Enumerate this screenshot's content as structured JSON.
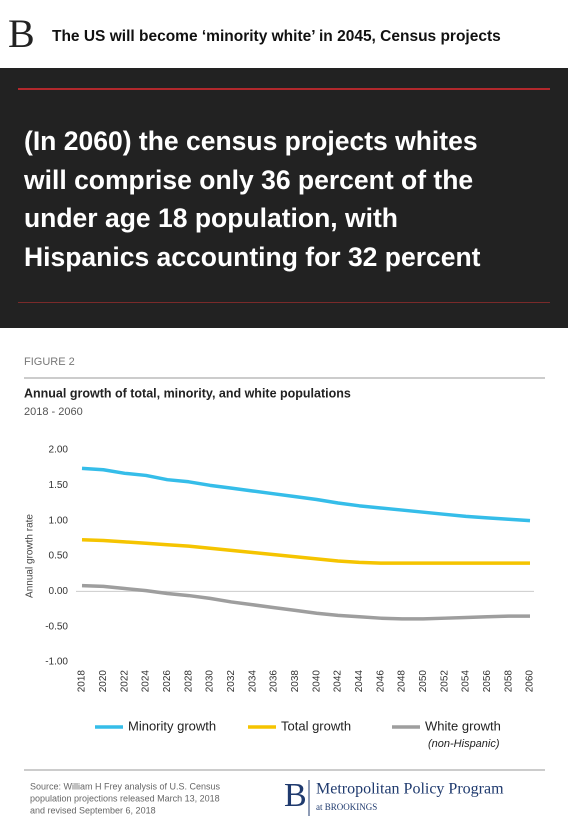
{
  "header": {
    "logo": "B",
    "title": "The US will become ‘minority white’ in 2045, Census projects"
  },
  "quote": {
    "lines": [
      "(In 2060) the census projects whites",
      "will comprise only 36 percent of the",
      "under age 18 population, with",
      "Hispanics accounting for 32 percent"
    ]
  },
  "figure_label": "FIGURE 2",
  "chart_data": {
    "type": "line",
    "title": "Annual growth of total, minority, and white populations",
    "subtitle": "2018 - 2060",
    "y_label": "Annual growth rate",
    "x": [
      2018,
      2020,
      2022,
      2024,
      2026,
      2028,
      2030,
      2032,
      2034,
      2036,
      2038,
      2040,
      2042,
      2044,
      2046,
      2048,
      2050,
      2052,
      2054,
      2056,
      2058,
      2060
    ],
    "xlim": [
      2018,
      2060
    ],
    "xticks": [
      2018,
      2020,
      2022,
      2024,
      2026,
      2028,
      2030,
      2032,
      2034,
      2036,
      2038,
      2040,
      2042,
      2044,
      2046,
      2048,
      2050,
      2052,
      2054,
      2056,
      2058,
      2060
    ],
    "ylim": [
      -1,
      2
    ],
    "yticks": [
      {
        "value": 2,
        "label": "2.00"
      },
      {
        "value": 1.5,
        "label": "1.50"
      },
      {
        "value": 1,
        "label": "1.00"
      },
      {
        "value": 0.5,
        "label": "0.50"
      },
      {
        "value": 0,
        "label": "0.00"
      },
      {
        "value": -0.5,
        "label": "-0.50"
      },
      {
        "value": -1,
        "label": "-1.00"
      }
    ],
    "grid": false,
    "series": [
      {
        "name": "Minority growth",
        "color": "#35bde9",
        "values": [
          1.74,
          1.72,
          1.67,
          1.64,
          1.58,
          1.55,
          1.5,
          1.46,
          1.42,
          1.38,
          1.34,
          1.3,
          1.25,
          1.21,
          1.18,
          1.15,
          1.12,
          1.09,
          1.06,
          1.04,
          1.02,
          1.0
        ]
      },
      {
        "name": "Total growth",
        "color": "#f5c400",
        "values": [
          0.73,
          0.72,
          0.7,
          0.68,
          0.66,
          0.64,
          0.61,
          0.58,
          0.55,
          0.52,
          0.49,
          0.46,
          0.43,
          0.41,
          0.4,
          0.4,
          0.4,
          0.4,
          0.4,
          0.4,
          0.4,
          0.4
        ]
      },
      {
        "name": "White growth",
        "color": "#9e9e9e",
        "values": [
          0.08,
          0.07,
          0.04,
          0.01,
          -0.03,
          -0.06,
          -0.1,
          -0.15,
          -0.19,
          -0.23,
          -0.27,
          -0.31,
          -0.34,
          -0.36,
          -0.38,
          -0.39,
          -0.39,
          -0.38,
          -0.37,
          -0.36,
          -0.35,
          -0.35
        ]
      }
    ],
    "legend_note": "(non-Hispanic)"
  },
  "footer": {
    "source": [
      "Source: William H Frey analysis of U.S. Census",
      "population projections released March 13, 2018",
      "and revised September 6, 2018"
    ],
    "logo": "B",
    "program": "Metropolitan Policy Program",
    "org": "at BROOKINGS"
  }
}
